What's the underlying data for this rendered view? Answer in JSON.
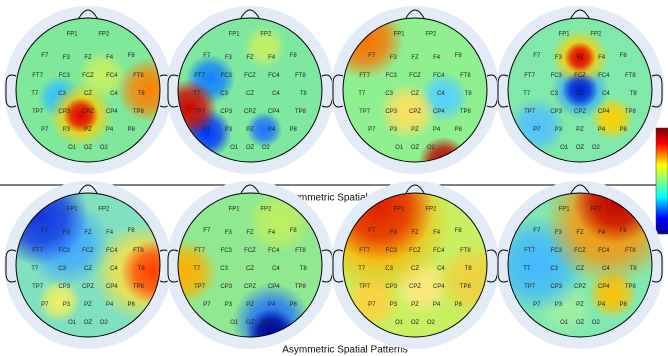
{
  "captions": {
    "filters": "Asymmetric Spatial Filters",
    "patterns": "Asymmetric Spatial Patterns"
  },
  "electrodes": [
    "FP1",
    "FP2",
    "F7",
    "F3",
    "FZ",
    "F4",
    "F8",
    "FT7",
    "FC3",
    "FCZ",
    "FC4",
    "FT8",
    "T7",
    "C3",
    "CZ",
    "C4",
    "T8",
    "TP7",
    "CP3",
    "CPZ",
    "CP4",
    "TP8",
    "P7",
    "P3",
    "PZ",
    "P4",
    "P8",
    "O1",
    "OZ",
    "O2"
  ]
}
